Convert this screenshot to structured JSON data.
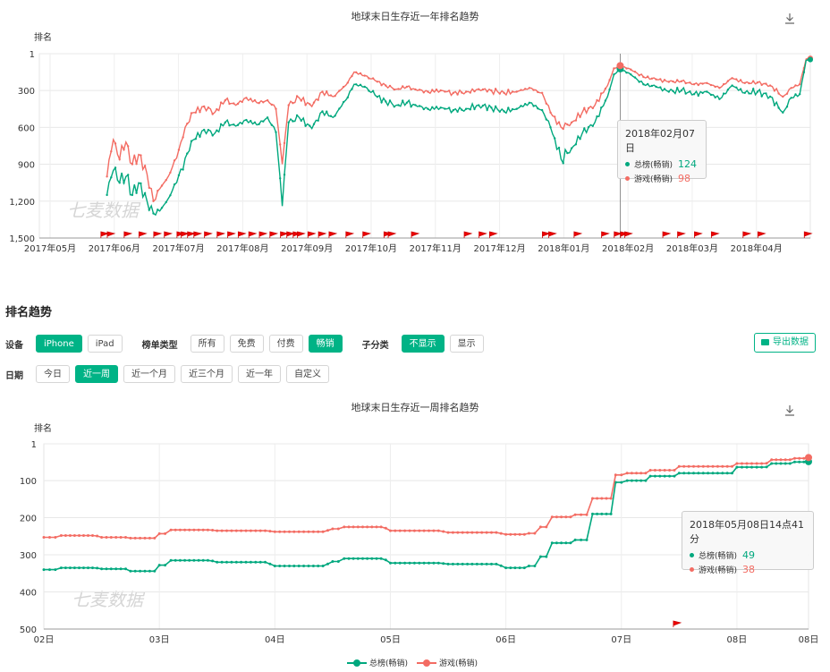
{
  "chart_data": [
    {
      "type": "line",
      "title": "地球末日生存近一年排名趋势",
      "ylabel": "排名",
      "yticks": [
        "1",
        "300",
        "600",
        "900",
        "1,200",
        "1,500"
      ],
      "ylim": [
        1,
        1500
      ],
      "y_inverted": true,
      "xticks": [
        "2017年05月",
        "2017年06月",
        "2017年07月",
        "2017年08月",
        "2017年09月",
        "2017年10月",
        "2017年11月",
        "2017年12月",
        "2018年01月",
        "2018年02月",
        "2018年03月",
        "2018年04月"
      ],
      "xrange": [
        "2017-05-08",
        "2018-05-08"
      ],
      "watermark": "七麦数据",
      "download_icon": "download-icon",
      "series": [
        {
          "name": "总榜(畅销)",
          "color": "#00a87e",
          "points": [
            [
              "2017-06-09",
              1150
            ],
            [
              "2017-06-12",
              950
            ],
            [
              "2017-06-15",
              1050
            ],
            [
              "2017-06-18",
              1000
            ],
            [
              "2017-06-21",
              1150
            ],
            [
              "2017-06-24",
              1050
            ],
            [
              "2017-06-28",
              1200
            ],
            [
              "2017-07-01",
              1300
            ],
            [
              "2017-07-04",
              1280
            ],
            [
              "2017-07-08",
              1180
            ],
            [
              "2017-07-12",
              1050
            ],
            [
              "2017-07-16",
              850
            ],
            [
              "2017-07-20",
              700
            ],
            [
              "2017-07-25",
              620
            ],
            [
              "2017-07-30",
              650
            ],
            [
              "2017-08-04",
              560
            ],
            [
              "2017-08-09",
              590
            ],
            [
              "2017-08-14",
              540
            ],
            [
              "2017-08-19",
              580
            ],
            [
              "2017-08-24",
              520
            ],
            [
              "2017-08-28",
              640
            ],
            [
              "2017-08-31",
              1240
            ],
            [
              "2017-09-03",
              560
            ],
            [
              "2017-09-08",
              520
            ],
            [
              "2017-09-14",
              610
            ],
            [
              "2017-09-19",
              470
            ],
            [
              "2017-09-24",
              520
            ],
            [
              "2017-09-30",
              380
            ],
            [
              "2017-10-04",
              250
            ],
            [
              "2017-10-09",
              270
            ],
            [
              "2017-10-14",
              340
            ],
            [
              "2017-10-19",
              390
            ],
            [
              "2017-10-24",
              420
            ],
            [
              "2017-10-29",
              400
            ],
            [
              "2017-11-03",
              430
            ],
            [
              "2017-11-08",
              450
            ],
            [
              "2017-11-14",
              440
            ],
            [
              "2017-11-20",
              460
            ],
            [
              "2017-11-26",
              450
            ],
            [
              "2017-12-02",
              420
            ],
            [
              "2017-12-08",
              440
            ],
            [
              "2017-12-14",
              470
            ],
            [
              "2017-12-20",
              450
            ],
            [
              "2017-12-26",
              400
            ],
            [
              "2018-01-01",
              460
            ],
            [
              "2018-01-05",
              600
            ],
            [
              "2018-01-10",
              860
            ],
            [
              "2018-01-15",
              770
            ],
            [
              "2018-01-20",
              650
            ],
            [
              "2018-01-26",
              560
            ],
            [
              "2018-02-01",
              350
            ],
            [
              "2018-02-04",
              170
            ],
            [
              "2018-02-07",
              124
            ],
            [
              "2018-02-12",
              170
            ],
            [
              "2018-02-18",
              250
            ],
            [
              "2018-02-24",
              270
            ],
            [
              "2018-03-02",
              310
            ],
            [
              "2018-03-08",
              300
            ],
            [
              "2018-03-14",
              330
            ],
            [
              "2018-03-20",
              310
            ],
            [
              "2018-03-26",
              370
            ],
            [
              "2018-04-01",
              260
            ],
            [
              "2018-04-07",
              320
            ],
            [
              "2018-04-13",
              310
            ],
            [
              "2018-04-19",
              350
            ],
            [
              "2018-04-25",
              480
            ],
            [
              "2018-04-29",
              360
            ],
            [
              "2018-05-03",
              330
            ],
            [
              "2018-05-06",
              55
            ],
            [
              "2018-05-08",
              49
            ]
          ]
        },
        {
          "name": "游戏(畅销)",
          "color": "#f36c63",
          "points": [
            [
              "2017-06-09",
              1000
            ],
            [
              "2017-06-12",
              700
            ],
            [
              "2017-06-15",
              860
            ],
            [
              "2017-06-18",
              720
            ],
            [
              "2017-06-21",
              900
            ],
            [
              "2017-06-24",
              820
            ],
            [
              "2017-06-28",
              980
            ],
            [
              "2017-07-01",
              1200
            ],
            [
              "2017-07-04",
              1100
            ],
            [
              "2017-07-08",
              1000
            ],
            [
              "2017-07-12",
              850
            ],
            [
              "2017-07-16",
              600
            ],
            [
              "2017-07-20",
              480
            ],
            [
              "2017-07-25",
              430
            ],
            [
              "2017-07-30",
              480
            ],
            [
              "2017-08-04",
              380
            ],
            [
              "2017-08-09",
              420
            ],
            [
              "2017-08-14",
              360
            ],
            [
              "2017-08-19",
              400
            ],
            [
              "2017-08-24",
              380
            ],
            [
              "2017-08-28",
              450
            ],
            [
              "2017-08-31",
              900
            ],
            [
              "2017-09-03",
              420
            ],
            [
              "2017-09-08",
              360
            ],
            [
              "2017-09-14",
              430
            ],
            [
              "2017-09-19",
              310
            ],
            [
              "2017-09-24",
              350
            ],
            [
              "2017-09-30",
              260
            ],
            [
              "2017-10-04",
              150
            ],
            [
              "2017-10-09",
              180
            ],
            [
              "2017-10-14",
              220
            ],
            [
              "2017-10-19",
              260
            ],
            [
              "2017-10-24",
              290
            ],
            [
              "2017-10-29",
              270
            ],
            [
              "2017-11-03",
              300
            ],
            [
              "2017-11-08",
              310
            ],
            [
              "2017-11-14",
              300
            ],
            [
              "2017-11-20",
              320
            ],
            [
              "2017-11-26",
              310
            ],
            [
              "2017-12-02",
              290
            ],
            [
              "2017-12-08",
              300
            ],
            [
              "2017-12-14",
              320
            ],
            [
              "2017-12-20",
              310
            ],
            [
              "2017-12-26",
              280
            ],
            [
              "2018-01-01",
              320
            ],
            [
              "2018-01-05",
              480
            ],
            [
              "2018-01-10",
              600
            ],
            [
              "2018-01-15",
              560
            ],
            [
              "2018-01-20",
              480
            ],
            [
              "2018-01-26",
              420
            ],
            [
              "2018-02-01",
              260
            ],
            [
              "2018-02-04",
              120
            ],
            [
              "2018-02-07",
              98
            ],
            [
              "2018-02-12",
              130
            ],
            [
              "2018-02-18",
              190
            ],
            [
              "2018-02-24",
              210
            ],
            [
              "2018-03-02",
              230
            ],
            [
              "2018-03-08",
              225
            ],
            [
              "2018-03-14",
              250
            ],
            [
              "2018-03-20",
              240
            ],
            [
              "2018-03-26",
              280
            ],
            [
              "2018-04-01",
              200
            ],
            [
              "2018-04-07",
              240
            ],
            [
              "2018-04-13",
              235
            ],
            [
              "2018-04-19",
              260
            ],
            [
              "2018-04-25",
              350
            ],
            [
              "2018-04-29",
              280
            ],
            [
              "2018-05-03",
              250
            ],
            [
              "2018-05-06",
              45
            ],
            [
              "2018-05-08",
              38
            ]
          ]
        }
      ],
      "flag_dates": [
        "2017-06-07",
        "2017-06-10",
        "2017-06-18",
        "2017-06-25",
        "2017-07-02",
        "2017-07-07",
        "2017-07-13",
        "2017-07-15",
        "2017-07-18",
        "2017-07-21",
        "2017-07-26",
        "2017-08-01",
        "2017-08-06",
        "2017-08-11",
        "2017-08-16",
        "2017-08-21",
        "2017-08-26",
        "2017-08-31",
        "2017-09-03",
        "2017-09-06",
        "2017-09-08",
        "2017-09-13",
        "2017-09-18",
        "2017-09-23",
        "2017-10-01",
        "2017-10-09",
        "2017-10-19",
        "2017-10-21",
        "2017-11-01",
        "2017-11-26",
        "2017-12-03",
        "2017-12-08",
        "2018-01-02",
        "2018-01-05",
        "2018-01-17",
        "2018-01-30",
        "2018-02-05",
        "2018-02-08",
        "2018-02-10",
        "2018-02-28",
        "2018-03-07",
        "2018-03-15",
        "2018-03-23",
        "2018-04-07",
        "2018-04-14",
        "2018-05-06"
      ],
      "tooltip": {
        "title": "2018年02月07日",
        "rows": [
          {
            "name": "总榜(畅销)",
            "value": "124"
          },
          {
            "name": "游戏(畅销)",
            "value": "98"
          }
        ]
      }
    },
    {
      "type": "line",
      "title": "地球末日生存近一周排名趋势",
      "ylabel": "排名",
      "yticks": [
        "1",
        "100",
        "200",
        "300",
        "400",
        "500"
      ],
      "ylim": [
        1,
        500
      ],
      "y_inverted": true,
      "xticks": [
        "02日",
        "03日",
        "04日",
        "05日",
        "06日",
        "07日",
        "08日",
        "08日"
      ],
      "watermark": "七麦数据",
      "download_icon": "download-icon",
      "series": [
        {
          "name": "总榜(畅销)",
          "color": "#00a87e",
          "points": [
            [
              0,
              340
            ],
            [
              0.15,
              335
            ],
            [
              0.5,
              338
            ],
            [
              0.75,
              344
            ],
            [
              1.0,
              328
            ],
            [
              1.1,
              315
            ],
            [
              1.5,
              320
            ],
            [
              2.0,
              330
            ],
            [
              2.5,
              318
            ],
            [
              2.6,
              310
            ],
            [
              3.0,
              322
            ],
            [
              3.5,
              325
            ],
            [
              4.0,
              335
            ],
            [
              4.2,
              330
            ],
            [
              4.3,
              305
            ],
            [
              4.4,
              268
            ],
            [
              4.6,
              260
            ],
            [
              4.75,
              190
            ],
            [
              4.95,
              105
            ],
            [
              5.05,
              100
            ],
            [
              5.25,
              88
            ],
            [
              5.5,
              80
            ],
            [
              5.75,
              80
            ],
            [
              6.0,
              64
            ],
            [
              6.3,
              54
            ],
            [
              6.5,
              50
            ],
            [
              6.62,
              49
            ]
          ]
        },
        {
          "name": "游戏(畅销)",
          "color": "#f36c63",
          "points": [
            [
              0,
              253
            ],
            [
              0.15,
              248
            ],
            [
              0.5,
              253
            ],
            [
              0.75,
              255
            ],
            [
              1.0,
              243
            ],
            [
              1.1,
              233
            ],
            [
              1.5,
              235
            ],
            [
              2.0,
              238
            ],
            [
              2.5,
              230
            ],
            [
              2.6,
              225
            ],
            [
              3.0,
              235
            ],
            [
              3.5,
              240
            ],
            [
              4.0,
              245
            ],
            [
              4.2,
              242
            ],
            [
              4.3,
              225
            ],
            [
              4.4,
              198
            ],
            [
              4.6,
              192
            ],
            [
              4.75,
              148
            ],
            [
              4.95,
              85
            ],
            [
              5.05,
              80
            ],
            [
              5.25,
              72
            ],
            [
              5.5,
              62
            ],
            [
              5.75,
              62
            ],
            [
              6.0,
              54
            ],
            [
              6.3,
              44
            ],
            [
              6.5,
              40
            ],
            [
              6.62,
              38
            ]
          ]
        }
      ],
      "flag_x": [
        5.45
      ],
      "tooltip": {
        "title": "2018年05月08日14点41分",
        "rows": [
          {
            "name": "总榜(畅销)",
            "value": "49"
          },
          {
            "name": "游戏(畅销)",
            "value": "38"
          }
        ]
      },
      "legend": [
        "总榜(畅销)",
        "游戏(畅销)"
      ]
    }
  ],
  "controls": {
    "section_title": "排名趋势",
    "device_label": "设备",
    "device_options": [
      "iPhone",
      "iPad"
    ],
    "device_selected": "iPhone",
    "chart_type_label": "榜单类型",
    "chart_type_options": [
      "所有",
      "免费",
      "付费",
      "畅销"
    ],
    "chart_type_selected": "畅销",
    "subcat_label": "子分类",
    "subcat_options": [
      "不显示",
      "显示"
    ],
    "subcat_selected": "不显示",
    "date_label": "日期",
    "date_options": [
      "今日",
      "近一周",
      "近一个月",
      "近三个月",
      "近一年",
      "自定义"
    ],
    "date_selected": "近一周",
    "export_label": "导出数据"
  },
  "colors": {
    "accent": "#00b386",
    "green": "#00a87e",
    "red": "#f36c63"
  }
}
